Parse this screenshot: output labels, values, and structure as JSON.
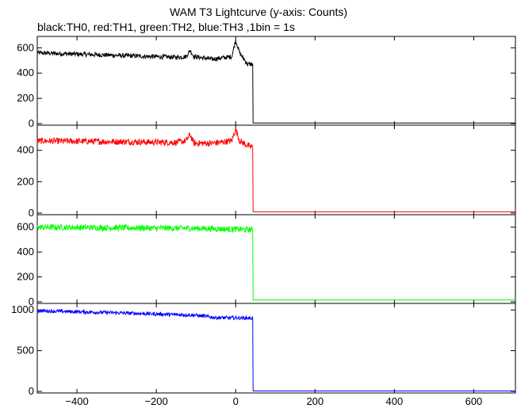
{
  "title": "WAM T3 Lightcurve (y-axis: Counts)",
  "subtitle": "black:TH0, red:TH1, green:TH2, blue:TH3 ,1bin = 1s",
  "chart_data": {
    "type": "line",
    "xlim": [
      -500,
      705
    ],
    "x_ticks": [
      -400,
      -200,
      0,
      200,
      400,
      600
    ],
    "x_tick_labels": [
      "−400",
      "−200",
      "0",
      "200",
      "400",
      "600"
    ],
    "panels": [
      {
        "name": "TH0",
        "color": "#000000",
        "ylim": [
          0,
          690
        ],
        "y_ticks": [
          0,
          200,
          400,
          600
        ],
        "y_tick_labels": [
          "0",
          "200",
          "400",
          "600"
        ],
        "drop_x": 43,
        "level_points": [
          [
            -500,
            560
          ],
          [
            -300,
            540
          ],
          [
            -150,
            525
          ],
          [
            -125,
            530
          ],
          [
            -115,
            580
          ],
          [
            -105,
            530
          ],
          [
            -60,
            510
          ],
          [
            -10,
            530
          ],
          [
            0,
            660
          ],
          [
            10,
            560
          ],
          [
            30,
            470
          ],
          [
            43,
            470
          ],
          [
            44,
            5
          ],
          [
            705,
            5
          ]
        ],
        "noise": 18
      },
      {
        "name": "TH1",
        "color": "#ff0000",
        "ylim": [
          0,
          560
        ],
        "y_ticks": [
          0,
          200,
          400
        ],
        "y_tick_labels": [
          "0",
          "200",
          "400"
        ],
        "drop_x": 43,
        "level_points": [
          [
            -500,
            460
          ],
          [
            -300,
            455
          ],
          [
            -150,
            450
          ],
          [
            -125,
            460
          ],
          [
            -115,
            500
          ],
          [
            -105,
            445
          ],
          [
            -60,
            445
          ],
          [
            -10,
            460
          ],
          [
            0,
            535
          ],
          [
            10,
            460
          ],
          [
            30,
            430
          ],
          [
            43,
            420
          ],
          [
            44,
            8
          ],
          [
            705,
            8
          ]
        ],
        "noise": 20
      },
      {
        "name": "TH2",
        "color": "#00ff00",
        "ylim": [
          0,
          700
        ],
        "y_ticks": [
          0,
          200,
          400,
          600
        ],
        "y_tick_labels": [
          "0",
          "200",
          "400",
          "600"
        ],
        "drop_x": 43,
        "level_points": [
          [
            -500,
            600
          ],
          [
            -300,
            595
          ],
          [
            -100,
            590
          ],
          [
            43,
            580
          ],
          [
            44,
            15
          ],
          [
            705,
            15
          ]
        ],
        "noise": 24
      },
      {
        "name": "TH3",
        "color": "#0000ff",
        "ylim": [
          0,
          1080
        ],
        "y_ticks": [
          0,
          500,
          1000
        ],
        "y_tick_labels": [
          "0",
          "500",
          "1000"
        ],
        "drop_x": 43,
        "level_points": [
          [
            -500,
            990
          ],
          [
            -300,
            965
          ],
          [
            -100,
            935
          ],
          [
            -50,
            905
          ],
          [
            43,
            900
          ],
          [
            44,
            5
          ],
          [
            705,
            5
          ]
        ],
        "noise": 22
      }
    ]
  }
}
